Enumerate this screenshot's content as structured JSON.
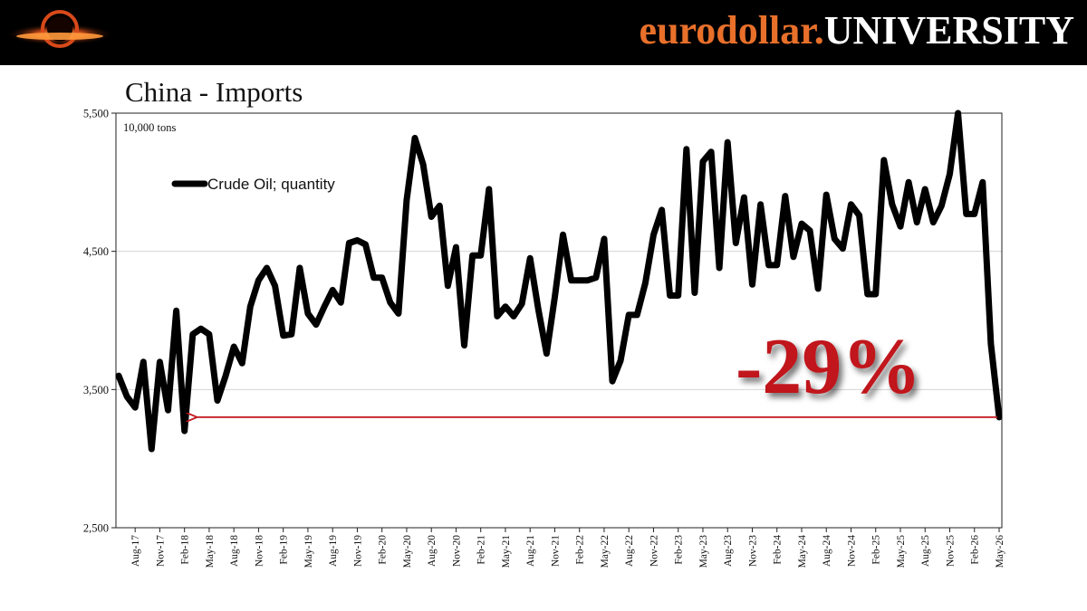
{
  "banner": {
    "brand_part1": "eurodollar.",
    "brand_part2": "UNIVERSITY",
    "brand_part1_color": "#e8702a",
    "brand_part2_color": "#ffffff",
    "logo_icon": "glowing-ring-logo-icon"
  },
  "chart_data": {
    "type": "line",
    "title": "China - Imports",
    "unit_label": "10,000 tons",
    "ylim": [
      2500,
      5500
    ],
    "y_ticks": [
      2500,
      3500,
      4500,
      5500
    ],
    "y_tick_labels": [
      "2,500",
      "3,500",
      "4,500",
      "5,500"
    ],
    "x_tick_labels": [
      "Aug-17",
      "Nov-17",
      "Feb-18",
      "May-18",
      "Aug-18",
      "Nov-18",
      "Feb-19",
      "May-19",
      "Aug-19",
      "Nov-19",
      "Feb-20",
      "May-20",
      "Aug-20",
      "Nov-20",
      "Feb-21",
      "May-21",
      "Aug-21",
      "Nov-21",
      "Feb-22",
      "May-22",
      "Aug-22",
      "Nov-22",
      "Feb-23",
      "May-23",
      "Aug-23",
      "Nov-23",
      "Feb-24",
      "May-24",
      "Aug-24",
      "Nov-24",
      "Feb-25",
      "May-25",
      "Aug-25",
      "Nov-25",
      "Feb-26",
      "May-26"
    ],
    "grid": true,
    "legend_position": "top-left",
    "series": [
      {
        "name": "Crude Oil; quantity",
        "color": "#000000",
        "x_start": "Jun-17",
        "x_step": "1 month",
        "values": [
          3600,
          3450,
          3370,
          3700,
          3070,
          3700,
          3350,
          4070,
          3200,
          3900,
          3940,
          3900,
          3420,
          3600,
          3810,
          3690,
          4100,
          4290,
          4380,
          4250,
          3890,
          3900,
          4380,
          4050,
          3970,
          4100,
          4220,
          4130,
          4560,
          4580,
          4550,
          4310,
          4310,
          4130,
          4050,
          4870,
          5320,
          5130,
          4750,
          4830,
          4250,
          4530,
          3820,
          4470,
          4470,
          4950,
          4030,
          4100,
          4030,
          4120,
          4450,
          4080,
          3760,
          4170,
          4620,
          4290,
          4290,
          4290,
          4310,
          4590,
          3560,
          3710,
          4040,
          4040,
          4270,
          4620,
          4800,
          4180,
          4180,
          5240,
          4200,
          5150,
          5220,
          4380,
          5290,
          4560,
          4890,
          4260,
          4840,
          4400,
          4400,
          4900,
          4460,
          4700,
          4650,
          4230,
          4910,
          4590,
          4520,
          4840,
          4760,
          4190,
          4190,
          5160,
          4840,
          4680,
          5000,
          4710,
          4950,
          4710,
          4830,
          5060,
          5500,
          4770,
          4770,
          5000,
          3830,
          3300
        ]
      }
    ],
    "annotations": [
      {
        "text": "-29%",
        "color": "#c0161c",
        "arrow_from": "May-26",
        "arrow_to": "Feb-18",
        "arrow_level": 3300
      }
    ]
  }
}
